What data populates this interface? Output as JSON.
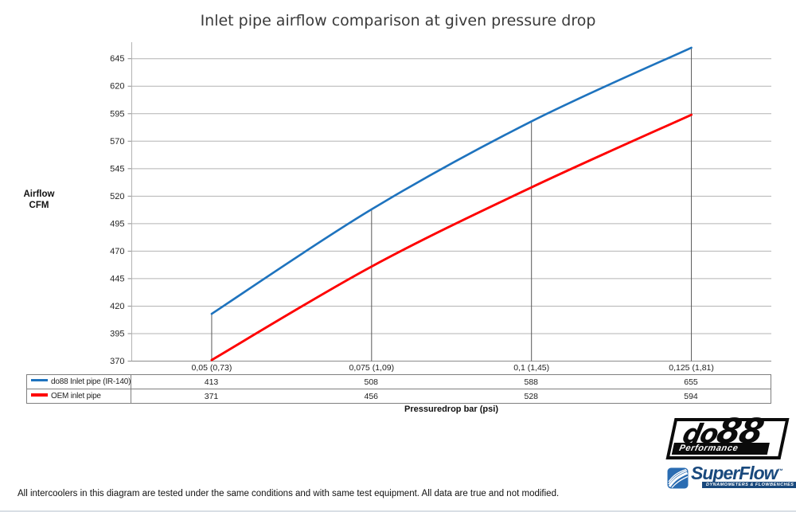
{
  "page": {
    "footer_note": "All intercoolers in this diagram are tested under the same conditions and with same test equipment. All data are true and not modified."
  },
  "chart_data": {
    "type": "line",
    "title": "Inlet pipe airflow comparison at given pressure drop",
    "categories": [
      "0,05 (0,73)",
      "0,075 (1,09)",
      "0,1 (1,45)",
      "0,125 (1,81)"
    ],
    "series": [
      {
        "name": "do88 Inlet pipe (IR-140)",
        "values": [
          413,
          508,
          588,
          655
        ],
        "color": "#1e73be"
      },
      {
        "name": "OEM inlet pipe",
        "values": [
          371,
          456,
          528,
          594
        ],
        "color": "#fe0000"
      }
    ],
    "xlabel": "Pressuredrop bar (psi)",
    "ylabel": "Airflow CFM",
    "ylabel_lines": [
      "Airflow",
      "CFM"
    ],
    "ylim": [
      370,
      660
    ],
    "yticks": {
      "min": 370,
      "max": 645,
      "step": 25
    },
    "grid": true,
    "smooth_lines": true,
    "legend_position": "data-table-left",
    "drop_lines_at_categories": true,
    "colors": {
      "gridline": "#b3b3b3",
      "axis": "#8c8c8c",
      "drop_line": "#595959",
      "tick_text": "#262626",
      "table_border": "#7f7f7f"
    }
  },
  "logos": {
    "do88": {
      "wordmark_part1": "do",
      "wordmark_part2": "88",
      "tagline": "Performance"
    },
    "superflow": {
      "wordmark": "SuperFlow",
      "trademark": "™",
      "tagline": "DYNAMOMETERS & FLOWBENCHES"
    }
  }
}
